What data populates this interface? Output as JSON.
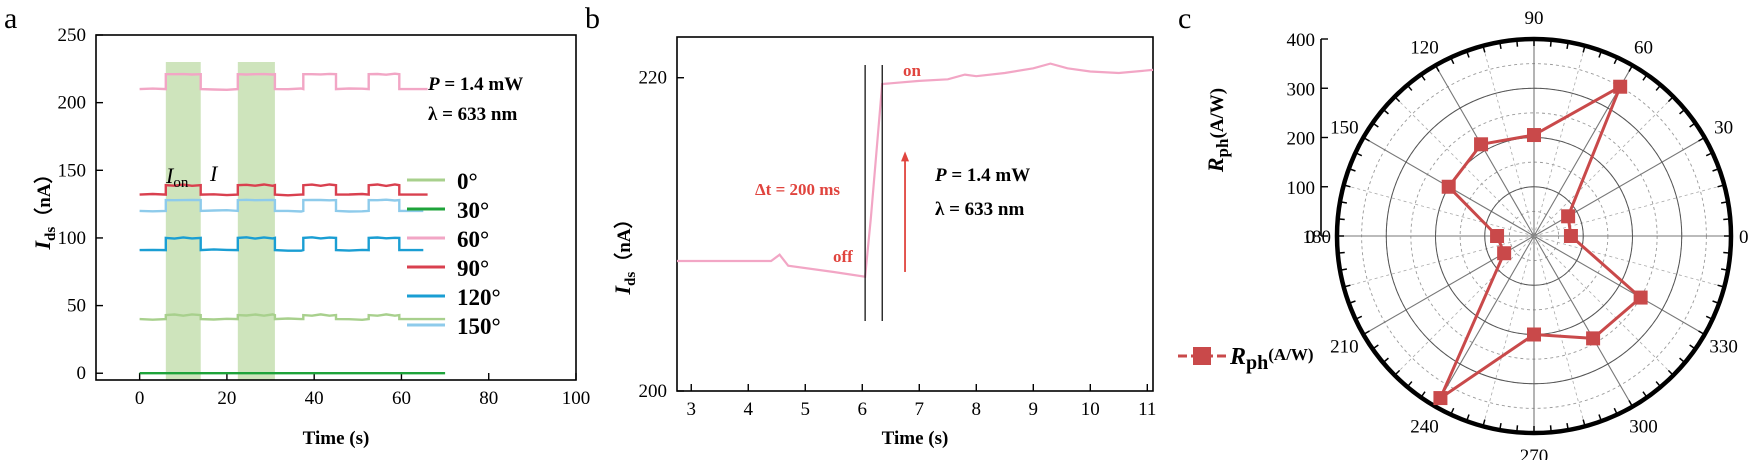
{
  "panels": {
    "a": "a",
    "b": "b",
    "c": "c"
  },
  "chart_data": [
    {
      "type": "line",
      "panel": "a",
      "xlabel": "Time (s)",
      "ylabel_main": "I",
      "ylabel_sub": "ds",
      "ylabel_unit": "（nA）",
      "xlim": [
        -10,
        100
      ],
      "ylim": [
        -5,
        250
      ],
      "xticks": [
        0,
        20,
        40,
        60,
        80,
        100
      ],
      "yticks": [
        0,
        50,
        100,
        150,
        200,
        250
      ],
      "legend_position": "right",
      "highlight_windows": [
        [
          6,
          14
        ],
        [
          22.5,
          31
        ]
      ],
      "on_windows": [
        [
          6,
          14
        ],
        [
          22.5,
          31
        ],
        [
          37.5,
          45
        ],
        [
          52.5,
          59.5
        ]
      ],
      "annotations": {
        "power_label": "P",
        "power_value": " = 1.4 mW",
        "wavelength": "λ = 633 nm",
        "i_on_main": "I",
        "i_on_sub": "on",
        "i_off_main": "I"
      },
      "series": [
        {
          "name": "0°",
          "color": "#a8d08d",
          "x_end": 70,
          "off": 40,
          "on": 43
        },
        {
          "name": "30°",
          "color": "#1ea33a",
          "x_end": 70,
          "off": 0,
          "on": 0
        },
        {
          "name": "60°",
          "color": "#f2a6c5",
          "x_end": 66,
          "off": 210,
          "on": 221
        },
        {
          "name": "90°",
          "color": "#d9404f",
          "x_end": 66,
          "off": 132,
          "on": 139
        },
        {
          "name": "120°",
          "color": "#1a9ed3",
          "x_end": 65,
          "off": 91,
          "on": 100
        },
        {
          "name": "150°",
          "color": "#8ecbeb",
          "x_end": 65,
          "off": 120,
          "on": 128
        }
      ]
    },
    {
      "type": "line",
      "panel": "b",
      "xlabel": "Time (s)",
      "ylabel_main": "I",
      "ylabel_sub": "ds",
      "ylabel_unit": "（nA）",
      "xlim": [
        2.75,
        11.1
      ],
      "ylim": [
        200,
        222.6
      ],
      "xticks": [
        3,
        4,
        5,
        6,
        7,
        8,
        9,
        10,
        11
      ],
      "yticks": [
        200,
        220
      ],
      "series_color": "#f2a6c5",
      "x": [
        2.75,
        4.4,
        4.55,
        4.7,
        5.5,
        6.05,
        6.15,
        6.35,
        7.0,
        7.5,
        7.8,
        8.0,
        8.5,
        9.0,
        9.3,
        9.6,
        10.0,
        10.5,
        11.1
      ],
      "y": [
        208.3,
        208.3,
        208.7,
        208.0,
        207.6,
        207.3,
        211.0,
        219.6,
        219.8,
        219.9,
        220.2,
        220.1,
        220.3,
        220.6,
        220.9,
        220.6,
        220.4,
        220.3,
        220.5
      ],
      "vlines": [
        6.05,
        6.35
      ],
      "arrow_x": 6.75,
      "arrow_y": [
        207.6,
        215.3
      ],
      "annotations": {
        "on_label": "on",
        "off_label": "off",
        "dt_label": "Δt = 200 ms",
        "power_label": "P",
        "power_value": " = 1.4 mW",
        "wavelength": "λ = 633 nm"
      }
    },
    {
      "type": "polar",
      "panel": "c",
      "rlabel_main": "R",
      "rlabel_sub": "ph",
      "rlabel_unit": "(A/W)",
      "rlim": [
        0,
        400
      ],
      "rticks": [
        0,
        100,
        200,
        300,
        400
      ],
      "angle_ticks": [
        0,
        30,
        60,
        90,
        120,
        150,
        180,
        210,
        240,
        270,
        300,
        330
      ],
      "series_color": "#c9494a",
      "legend_main": "R",
      "legend_sub": "ph",
      "legend_unit": "(A/W)",
      "points": [
        {
          "angle": 0,
          "r": 75
        },
        {
          "angle": 30,
          "r": 80
        },
        {
          "angle": 60,
          "r": 350
        },
        {
          "angle": 90,
          "r": 205
        },
        {
          "angle": 120,
          "r": 215
        },
        {
          "angle": 150,
          "r": 200
        },
        {
          "angle": 180,
          "r": 75
        },
        {
          "angle": 210,
          "r": 70
        },
        {
          "angle": 240,
          "r": 380
        },
        {
          "angle": 270,
          "r": 200
        },
        {
          "angle": 300,
          "r": 240
        },
        {
          "angle": 330,
          "r": 250
        }
      ]
    }
  ]
}
